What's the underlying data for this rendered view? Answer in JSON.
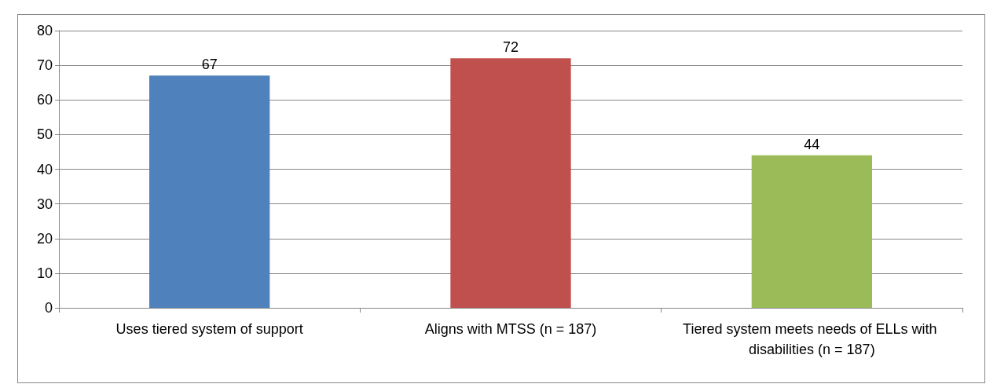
{
  "chart_data": {
    "type": "bar",
    "categories": [
      "Uses tiered system of support",
      "Aligns with MTSS (n = 187)",
      "Tiered system meets needs of ELLs with disabilities (n = 187)"
    ],
    "values": [
      67,
      72,
      44
    ],
    "colors": [
      "#4f81bd",
      "#c0504d",
      "#9bbb59"
    ],
    "ylim": [
      0,
      80
    ],
    "yticks": [
      0,
      10,
      20,
      30,
      40,
      50,
      60,
      70,
      80
    ],
    "grid": "y",
    "data_labels": true
  }
}
